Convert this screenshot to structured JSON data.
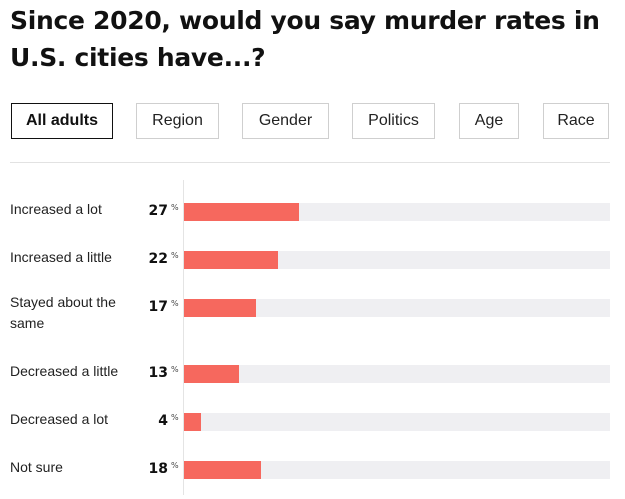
{
  "header": {
    "title": "Since 2020, would you say murder rates in U.S. cities have...?"
  },
  "tabs": [
    {
      "label": "All adults",
      "active": true
    },
    {
      "label": "Region",
      "active": false
    },
    {
      "label": "Gender",
      "active": false
    },
    {
      "label": "Politics",
      "active": false
    },
    {
      "label": "Age",
      "active": false
    },
    {
      "label": "Race",
      "active": false
    }
  ],
  "colors": {
    "bar": "#f6685e",
    "track": "#efeff2",
    "text": "#111111"
  },
  "chart_data": {
    "type": "bar",
    "orientation": "horizontal",
    "title": "Since 2020, would you say murder rates in U.S. cities have...?",
    "categories": [
      "Increased a lot",
      "Increased a little",
      "Stayed about the same",
      "Decreased a little",
      "Decreased a lot",
      "Not sure"
    ],
    "values": [
      27,
      22,
      17,
      13,
      4,
      18
    ],
    "unit": "%",
    "xlim": [
      0,
      100
    ],
    "grid": false,
    "legend": "none"
  }
}
